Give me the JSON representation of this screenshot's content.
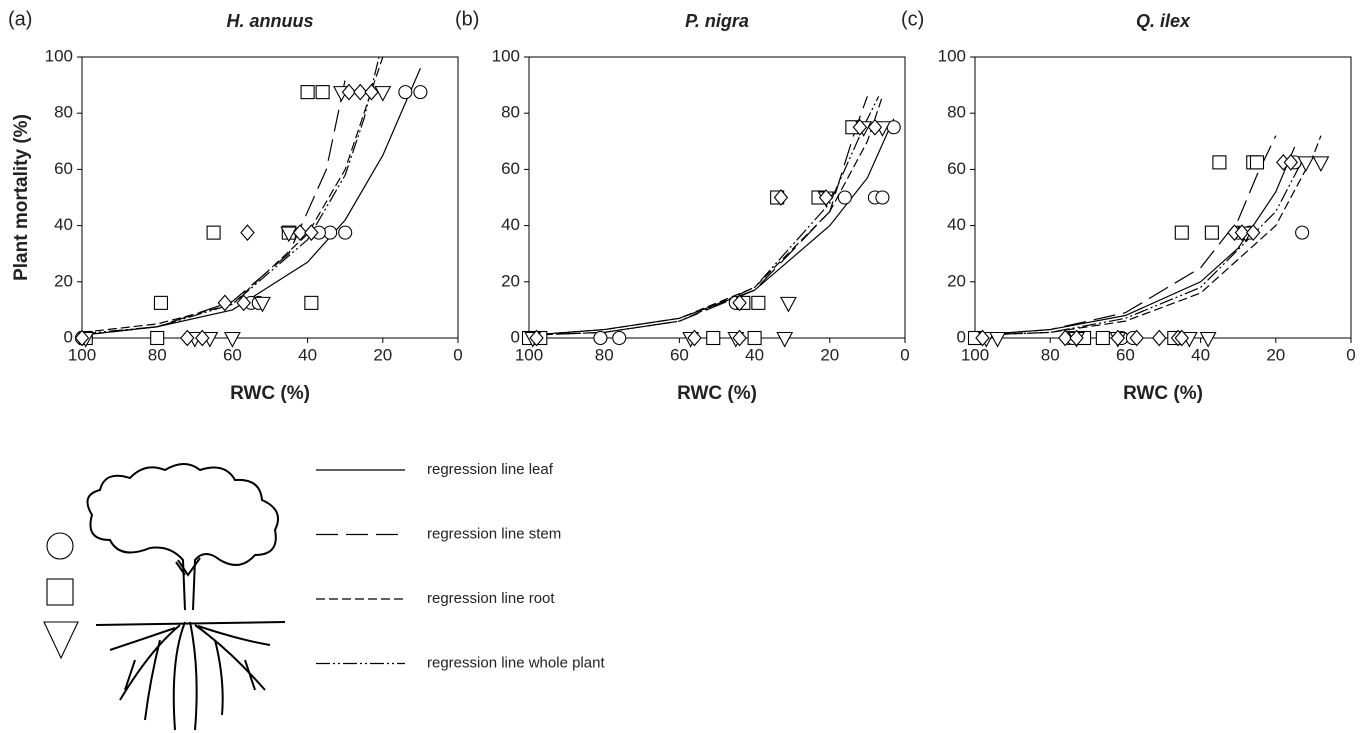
{
  "chart_data": [
    {
      "type": "scatter",
      "panel_label": "(a)",
      "title": "H. annuus",
      "x_label": "RWC (%)",
      "y_label": "Plant mortality (%)",
      "xlim": [
        100,
        0
      ],
      "ylim": [
        0,
        100
      ],
      "xticks": [
        100,
        80,
        60,
        40,
        20,
        0
      ],
      "yticks": [
        0,
        20,
        40,
        60,
        80,
        100
      ],
      "series": [
        {
          "marker": "circle",
          "color": "#000000",
          "x": [
            99,
            100,
            14,
            10,
            34,
            30,
            37,
            55,
            53
          ],
          "values": [
            0,
            0,
            87.5,
            87.5,
            37.5,
            37.5,
            37.5,
            12.5,
            12.5
          ]
        },
        {
          "marker": "square",
          "color": "#000000",
          "x": [
            80,
            79,
            65,
            40,
            36,
            45,
            39,
            99
          ],
          "values": [
            0,
            12.5,
            37.5,
            87.5,
            87.5,
            37.5,
            12.5,
            0
          ]
        },
        {
          "marker": "triangle",
          "color": "#000000",
          "x": [
            99,
            70,
            66,
            60,
            52,
            45,
            31,
            20
          ],
          "values": [
            0,
            0,
            0,
            0,
            12.5,
            37.5,
            87.5,
            87.5
          ]
        },
        {
          "marker": "diamond",
          "color": "#000000",
          "x": [
            100,
            72,
            68,
            62,
            57,
            56,
            42,
            39,
            29,
            26,
            23
          ],
          "values": [
            0,
            0,
            0,
            12.5,
            12.5,
            37.5,
            37.5,
            37.5,
            87.5,
            87.5,
            87.5
          ]
        }
      ],
      "curves": [
        {
          "dash": "solid",
          "x": [
            100,
            80,
            60,
            40,
            30,
            20,
            10
          ],
          "values": [
            1,
            4,
            10,
            27,
            42,
            65,
            96
          ]
        },
        {
          "dash": "long",
          "x": [
            100,
            80,
            60,
            45,
            35,
            30
          ],
          "values": [
            1,
            4,
            13,
            30,
            60,
            92
          ]
        },
        {
          "dash": "short",
          "x": [
            100,
            80,
            60,
            40,
            30,
            25,
            20
          ],
          "values": [
            2,
            5,
            12,
            37,
            60,
            80,
            100
          ]
        },
        {
          "dash": "dash-dot-dot",
          "x": [
            100,
            80,
            60,
            40,
            30,
            25,
            21
          ],
          "values": [
            1.5,
            4,
            12,
            35,
            58,
            78,
            100
          ]
        }
      ]
    },
    {
      "type": "scatter",
      "panel_label": "(b)",
      "title": "P. nigra",
      "x_label": "RWC (%)",
      "xlim": [
        100,
        0
      ],
      "ylim": [
        0,
        100
      ],
      "xticks": [
        100,
        80,
        60,
        40,
        20,
        0
      ],
      "yticks": [
        0,
        20,
        40,
        60,
        80,
        100
      ],
      "series": [
        {
          "marker": "circle",
          "color": "#000000",
          "x": [
            99,
            81,
            76,
            45,
            16,
            8,
            6,
            3
          ],
          "values": [
            0,
            0,
            0,
            12.5,
            50,
            50,
            50,
            75
          ]
        },
        {
          "marker": "square",
          "color": "#000000",
          "x": [
            100,
            97,
            51,
            40,
            43,
            39,
            34,
            23,
            14
          ],
          "values": [
            0,
            0,
            0,
            0,
            12.5,
            12.5,
            50,
            50,
            75
          ]
        },
        {
          "marker": "triangle",
          "color": "#000000",
          "x": [
            99,
            57,
            45,
            32,
            31,
            21,
            11,
            6
          ],
          "values": [
            0,
            0,
            0,
            0,
            12.5,
            50,
            75,
            75
          ]
        },
        {
          "marker": "diamond",
          "color": "#000000",
          "x": [
            98,
            56,
            44,
            44,
            33,
            21,
            12,
            8
          ],
          "values": [
            0,
            0,
            0,
            12.5,
            50,
            50,
            75,
            75
          ]
        }
      ],
      "curves": [
        {
          "dash": "solid",
          "x": [
            100,
            80,
            60,
            40,
            20,
            10,
            3
          ],
          "values": [
            1,
            3,
            7,
            17,
            40,
            57,
            78
          ]
        },
        {
          "dash": "long",
          "x": [
            100,
            80,
            60,
            40,
            20,
            13,
            10
          ],
          "values": [
            1,
            2,
            6,
            17,
            45,
            75,
            86
          ]
        },
        {
          "dash": "short",
          "x": [
            100,
            80,
            60,
            40,
            20,
            10,
            6
          ],
          "values": [
            1,
            3,
            7,
            18,
            45,
            70,
            86
          ]
        },
        {
          "dash": "dash-dot-dot",
          "x": [
            100,
            80,
            60,
            40,
            20,
            10,
            7
          ],
          "values": [
            1,
            2,
            6,
            18,
            48,
            78,
            86
          ]
        }
      ]
    },
    {
      "type": "scatter",
      "panel_label": "(c)",
      "title": "Q. ilex",
      "x_label": "RWC (%)",
      "xlim": [
        100,
        0
      ],
      "ylim": [
        0,
        100
      ],
      "xticks": [
        100,
        80,
        60,
        40,
        20,
        0
      ],
      "yticks": [
        0,
        20,
        40,
        60,
        80,
        100
      ],
      "series": [
        {
          "marker": "circle",
          "color": "#000000",
          "x": [
            100,
            99,
            75,
            74,
            61,
            58,
            30,
            27,
            13,
            15
          ],
          "values": [
            0,
            0,
            0,
            0,
            0,
            0,
            37.5,
            37.5,
            37.5,
            62.5
          ]
        },
        {
          "marker": "square",
          "color": "#000000",
          "x": [
            100,
            71,
            66,
            47,
            45,
            37,
            35,
            26,
            25
          ],
          "values": [
            0,
            0,
            0,
            0,
            37.5,
            37.5,
            62.5,
            62.5,
            62.5
          ]
        },
        {
          "marker": "triangle",
          "color": "#000000",
          "x": [
            97,
            94,
            73,
            62,
            43,
            38,
            28,
            12,
            8
          ],
          "values": [
            0,
            0,
            0,
            0,
            0,
            0,
            37.5,
            62.5,
            62.5
          ]
        },
        {
          "marker": "diamond",
          "color": "#000000",
          "x": [
            98,
            76,
            73,
            62,
            57,
            51,
            46,
            45,
            31,
            29,
            26,
            18,
            16
          ],
          "values": [
            0,
            0,
            0,
            0,
            0,
            0,
            0,
            0,
            37.5,
            37.5,
            37.5,
            62.5,
            62.5
          ]
        }
      ],
      "curves": [
        {
          "dash": "solid",
          "x": [
            100,
            80,
            60,
            40,
            30,
            20,
            15
          ],
          "values": [
            1,
            3,
            8,
            20,
            32,
            52,
            68
          ]
        },
        {
          "dash": "long",
          "x": [
            100,
            80,
            60,
            40,
            30,
            25,
            20
          ],
          "values": [
            1,
            3,
            9,
            25,
            42,
            58,
            72
          ]
        },
        {
          "dash": "short",
          "x": [
            100,
            80,
            60,
            40,
            20,
            10,
            8
          ],
          "values": [
            1,
            2,
            6,
            16,
            40,
            65,
            72
          ]
        },
        {
          "dash": "dash-dot-dot",
          "x": [
            100,
            80,
            60,
            40,
            20,
            13
          ],
          "values": [
            1,
            2,
            7,
            18,
            45,
            63
          ]
        }
      ]
    }
  ],
  "legend": {
    "entries": [
      {
        "label": "regression line leaf",
        "dash": "solid"
      },
      {
        "label": "regression line stem",
        "dash": "long"
      },
      {
        "label": "regression line root",
        "dash": "short"
      },
      {
        "label": "regression line whole plant",
        "dash": "dash-dot-dot"
      }
    ],
    "markers": [
      "circle",
      "square",
      "triangle"
    ]
  }
}
